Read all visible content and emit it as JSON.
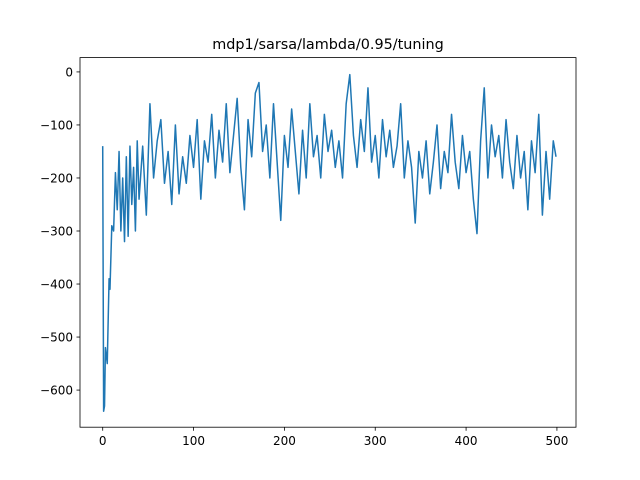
{
  "chart_data": {
    "type": "line",
    "title": "mdp1/sarsa/lambda/0.95/tuning",
    "x": [
      0,
      1,
      2,
      3,
      5,
      7,
      8,
      10,
      12,
      14,
      16,
      18,
      20,
      22,
      24,
      26,
      28,
      30,
      32,
      34,
      36,
      38,
      40,
      44,
      48,
      52,
      56,
      60,
      64,
      68,
      72,
      76,
      80,
      84,
      88,
      92,
      96,
      100,
      104,
      108,
      112,
      116,
      120,
      124,
      128,
      132,
      136,
      140,
      144,
      148,
      152,
      156,
      160,
      164,
      168,
      172,
      176,
      180,
      184,
      188,
      192,
      196,
      200,
      204,
      208,
      212,
      216,
      220,
      224,
      228,
      232,
      236,
      240,
      244,
      248,
      252,
      256,
      260,
      264,
      268,
      272,
      276,
      280,
      284,
      288,
      292,
      296,
      300,
      304,
      308,
      312,
      316,
      320,
      324,
      328,
      332,
      336,
      340,
      344,
      348,
      352,
      356,
      360,
      364,
      368,
      372,
      376,
      380,
      384,
      388,
      392,
      396,
      400,
      404,
      408,
      412,
      416,
      420,
      424,
      428,
      432,
      436,
      440,
      444,
      448,
      452,
      456,
      460,
      464,
      468,
      472,
      476,
      480,
      484,
      488,
      492,
      496,
      499
    ],
    "series": [
      {
        "color": "#1f77b4",
        "values": [
          -140,
          -640,
          -630,
          -520,
          -550,
          -390,
          -410,
          -290,
          -300,
          -190,
          -260,
          -150,
          -300,
          -200,
          -320,
          -160,
          -310,
          -140,
          -250,
          -180,
          -300,
          -130,
          -240,
          -140,
          -270,
          -60,
          -200,
          -130,
          -90,
          -210,
          -150,
          -250,
          -100,
          -230,
          -160,
          -210,
          -120,
          -180,
          -90,
          -240,
          -130,
          -170,
          -80,
          -200,
          -110,
          -170,
          -60,
          -190,
          -120,
          -50,
          -180,
          -260,
          -90,
          -160,
          -40,
          -20,
          -150,
          -100,
          -200,
          -60,
          -170,
          -280,
          -120,
          -180,
          -70,
          -150,
          -230,
          -110,
          -200,
          -60,
          -160,
          -120,
          -200,
          -80,
          -150,
          -110,
          -180,
          -130,
          -200,
          -60,
          -5,
          -120,
          -180,
          -90,
          -150,
          -30,
          -170,
          -120,
          -200,
          -90,
          -160,
          -110,
          -180,
          -140,
          -60,
          -200,
          -130,
          -180,
          -285,
          -150,
          -200,
          -130,
          -230,
          -170,
          -100,
          -220,
          -150,
          -190,
          -80,
          -170,
          -220,
          -120,
          -190,
          -150,
          -240,
          -305,
          -130,
          -30,
          -200,
          -100,
          -160,
          -120,
          -200,
          -90,
          -170,
          -220,
          -120,
          -200,
          -150,
          -260,
          -130,
          -190,
          -80,
          -270,
          -150,
          -240,
          -130,
          -160
        ]
      }
    ],
    "xlim": [
      -25,
      521
    ],
    "ylim": [
      -670,
      27
    ],
    "xticks": [
      0,
      100,
      200,
      300,
      400,
      500
    ],
    "yticks": [
      {
        "value": -600,
        "label": "−600"
      },
      {
        "value": -500,
        "label": "−500"
      },
      {
        "value": -400,
        "label": "−400"
      },
      {
        "value": -300,
        "label": "−300"
      },
      {
        "value": -200,
        "label": "−200"
      },
      {
        "value": -100,
        "label": "−100"
      },
      0
    ]
  }
}
